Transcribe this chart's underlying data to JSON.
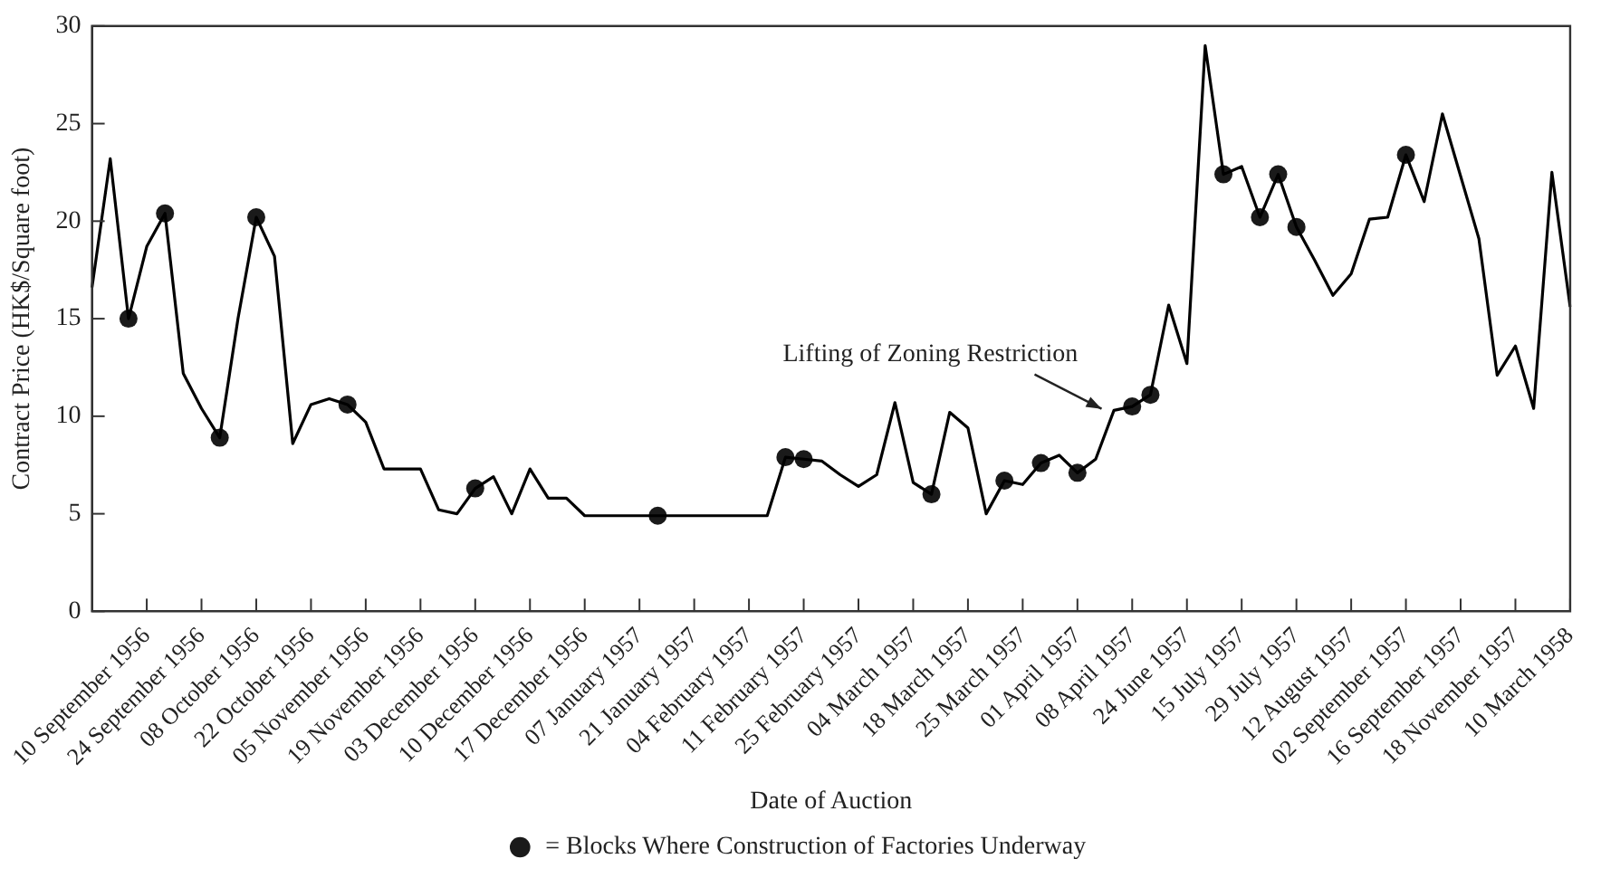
{
  "chart_data": {
    "type": "line",
    "xlabel": "Date of Auction",
    "ylabel": "Contract Price (HK$/Square foot)",
    "categories": [
      null,
      null,
      null,
      "10 September 1956",
      null,
      null,
      "24 September 1956",
      null,
      null,
      "08 October 1956",
      null,
      null,
      "22 October 1956",
      null,
      null,
      "05 November 1956",
      null,
      null,
      "19 November 1956",
      null,
      null,
      "03 December 1956",
      null,
      null,
      "10 December 1956",
      null,
      null,
      "17 December 1956",
      null,
      null,
      "07 January 1957",
      null,
      null,
      "21 January 1957",
      null,
      null,
      "04 February 1957",
      null,
      null,
      "11 February 1957",
      null,
      null,
      "25 February 1957",
      null,
      null,
      "04 March 1957",
      null,
      null,
      "18 March 1957",
      null,
      null,
      "25 March 1957",
      null,
      null,
      "01 April 1957",
      null,
      null,
      "08 April 1957",
      null,
      null,
      "24 June 1957",
      null,
      null,
      "15 July 1957",
      null,
      null,
      "29 July 1957",
      null,
      null,
      "12 August 1957",
      null,
      null,
      "02 September 1957",
      null,
      null,
      "16 September 1957",
      null,
      null,
      "18 November 1957",
      null,
      null,
      "10 March 1958"
    ],
    "series": [
      {
        "color": "#000000",
        "marker": "none",
        "values": [
          16.6,
          23.2,
          15.0,
          18.7,
          20.4,
          12.2,
          10.4,
          8.9,
          15.0,
          20.2,
          18.2,
          8.6,
          10.6,
          10.9,
          10.6,
          9.7,
          7.3,
          7.3,
          7.3,
          5.2,
          5.0,
          6.3,
          6.9,
          5.0,
          7.3,
          5.8,
          5.8,
          4.9,
          4.9,
          4.9,
          4.9,
          4.9,
          4.9,
          4.9,
          4.9,
          4.9,
          4.9,
          4.9,
          7.9,
          7.8,
          7.7,
          7.0,
          6.4,
          7.0,
          10.7,
          6.6,
          6.0,
          10.2,
          9.4,
          5.0,
          6.7,
          6.5,
          7.6,
          8.0,
          7.1,
          7.8,
          10.3,
          10.5,
          11.1,
          15.7,
          12.7,
          29.0,
          22.4,
          22.8,
          20.2,
          22.4,
          19.7,
          18.0,
          16.2,
          17.3,
          20.1,
          20.2,
          23.4,
          21.0,
          25.5,
          22.3,
          19.1,
          12.1,
          13.6,
          10.4,
          22.5,
          15.6
        ]
      },
      {
        "type": "scatter",
        "name": "= Blocks Where Construction of Factories Underway",
        "color": "#1a1a1a",
        "marker": "circle",
        "values": [
          null,
          null,
          15.0,
          null,
          20.4,
          null,
          null,
          8.9,
          null,
          20.2,
          null,
          null,
          null,
          null,
          10.6,
          null,
          null,
          null,
          null,
          null,
          null,
          6.3,
          null,
          null,
          null,
          null,
          null,
          null,
          null,
          null,
          null,
          4.9,
          null,
          null,
          null,
          null,
          null,
          null,
          7.9,
          7.8,
          null,
          null,
          null,
          null,
          null,
          null,
          6.0,
          null,
          null,
          null,
          6.7,
          null,
          7.6,
          null,
          7.1,
          null,
          null,
          10.5,
          11.1,
          null,
          null,
          null,
          22.4,
          null,
          20.2,
          22.4,
          19.7,
          null,
          null,
          null,
          null,
          null,
          23.4,
          null,
          null,
          null,
          null,
          null,
          null,
          null,
          null,
          null
        ]
      }
    ],
    "ylim": [
      0,
      30
    ],
    "yticks": [
      0,
      5,
      10,
      15,
      20,
      25,
      30
    ],
    "grid": false,
    "legend": "bottom",
    "annotations": [
      "Lifting of Zoning Restriction"
    ]
  }
}
